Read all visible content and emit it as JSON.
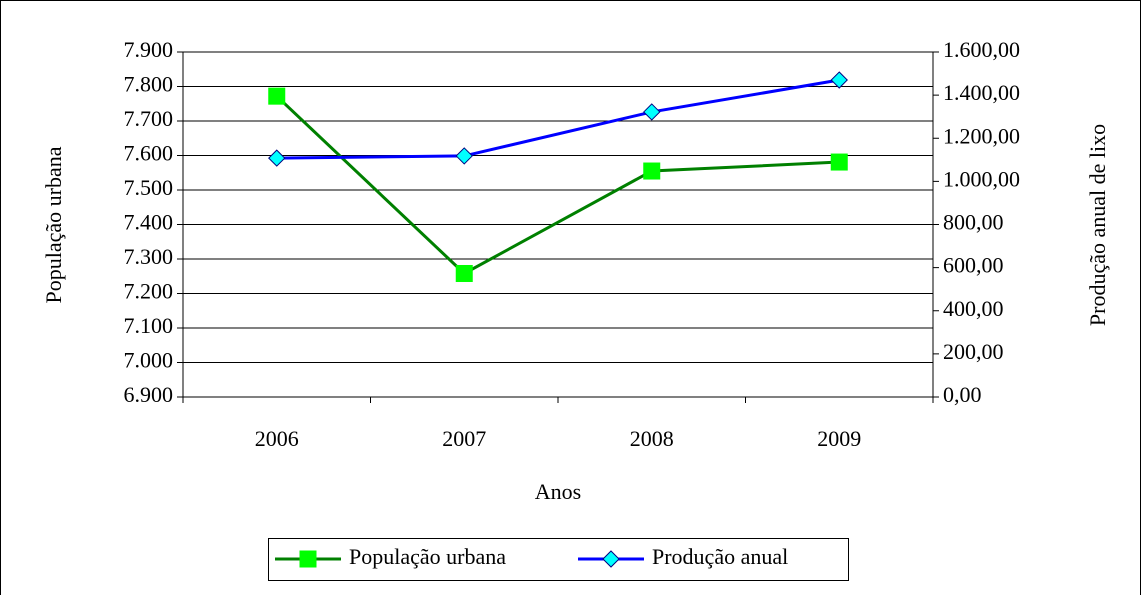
{
  "chart_data": {
    "type": "line",
    "categories": [
      "2006",
      "2007",
      "2008",
      "2009"
    ],
    "xlabel": "Anos",
    "ylabel": "População urbana",
    "y2label": "Produção anual de lixo",
    "ylim": [
      6900,
      7900
    ],
    "yticks": [
      {
        "value": 6900,
        "label": "6.900"
      },
      {
        "value": 7000,
        "label": "7.000"
      },
      {
        "value": 7100,
        "label": "7.100"
      },
      {
        "value": 7200,
        "label": "7.200"
      },
      {
        "value": 7300,
        "label": "7.300"
      },
      {
        "value": 7400,
        "label": "7.400"
      },
      {
        "value": 7500,
        "label": "7.500"
      },
      {
        "value": 7600,
        "label": "7.600"
      },
      {
        "value": 7700,
        "label": "7.700"
      },
      {
        "value": 7800,
        "label": "7.800"
      },
      {
        "value": 7900,
        "label": "7.900"
      }
    ],
    "y2lim": [
      0,
      1600
    ],
    "y2ticks": [
      {
        "value": 0,
        "label": "0,00"
      },
      {
        "value": 200,
        "label": "200,00"
      },
      {
        "value": 400,
        "label": "400,00"
      },
      {
        "value": 600,
        "label": "600,00"
      },
      {
        "value": 800,
        "label": "800,00"
      },
      {
        "value": 1000,
        "label": "1.000,00"
      },
      {
        "value": 1200,
        "label": "1.200,00"
      },
      {
        "value": 1400,
        "label": "1.400,00"
      },
      {
        "value": 1600,
        "label": "1.600,00"
      }
    ],
    "grid": true,
    "legend": "bottom",
    "series": [
      {
        "name": "População urbana",
        "color": "#008000",
        "marker_color": "#00ff00",
        "marker": "square",
        "values": [
          7772,
          7258,
          7555,
          7581
        ]
      },
      {
        "name": "Produção anual",
        "color": "#0000ff",
        "marker_color": "#00ffff",
        "marker": "diamond",
        "axis": "y2",
        "values": [
          1108,
          1118,
          1322,
          1470
        ]
      }
    ]
  }
}
